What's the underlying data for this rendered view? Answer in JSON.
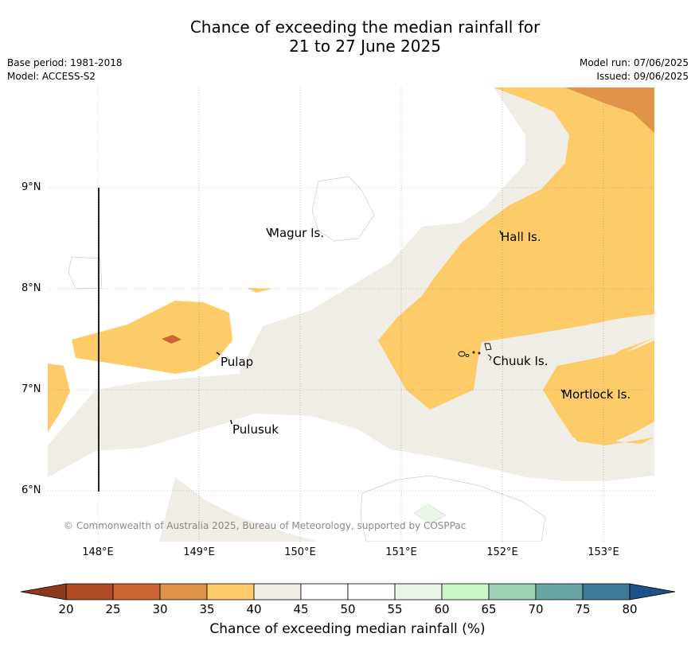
{
  "title_line1": "Chance of exceeding the median rainfall for",
  "title_line2": "21 to 27 June 2025",
  "base_period": "Base period: 1981-2018",
  "model": "Model: ACCESS-S2",
  "model_run": "Model run: 07/06/2025",
  "issued": "Issued: 09/06/2025",
  "lat_ticks": [
    "9°N",
    "8°N",
    "7°N",
    "6°N"
  ],
  "lon_ticks": [
    "148°E",
    "149°E",
    "150°E",
    "151°E",
    "152°E",
    "153°E"
  ],
  "places": {
    "magur": "Magur Is.",
    "hall": "Hall Is.",
    "pulap": "Pulap",
    "chuuk": "Chuuk Is.",
    "mortlock": "Mortlock Is.",
    "pulusuk": "Pulusuk"
  },
  "copyright": "© Commonwealth of Australia 2025, Bureau of Meteorology, supported by COSPPac",
  "colorbar": {
    "label": "Chance of exceeding median rainfall (%)",
    "ticks": [
      "20",
      "25",
      "30",
      "35",
      "40",
      "45",
      "50",
      "55",
      "60",
      "65",
      "70",
      "75",
      "80"
    ],
    "colors": [
      "#b04a24",
      "#cc6535",
      "#e09449",
      "#fdcb68",
      "#f0ece6",
      "#ffffff",
      "#ffffff",
      "#eaf4e8",
      "#caf8c8",
      "#9dcfb5",
      "#6aa5a5",
      "#3f7a98"
    ],
    "under_color": "#8e3a1a",
    "over_color": "#1c5189"
  },
  "colors": {
    "c30_35": "#e09449",
    "c35_40": "#fdcb68",
    "c40_45": "#f0ece6",
    "c55_60": "#eaf4e8",
    "c25_30": "#cc6535"
  }
}
